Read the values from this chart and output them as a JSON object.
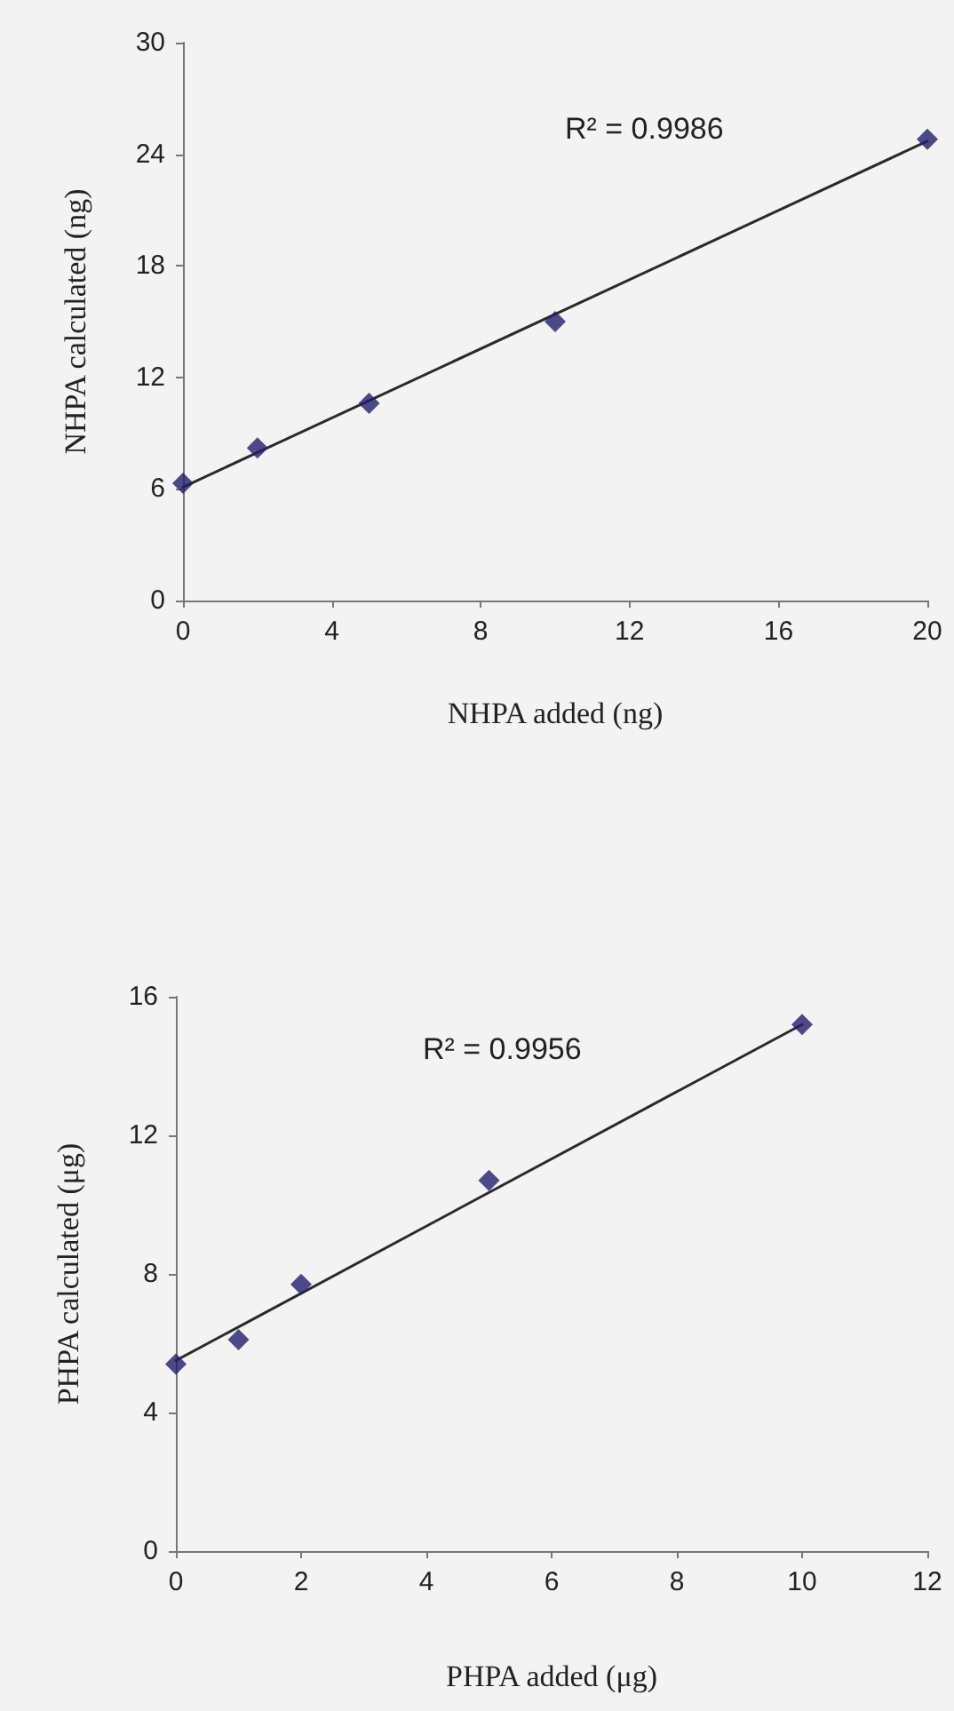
{
  "chart_data": [
    {
      "type": "scatter",
      "xlabel": "NHPA added (ng)",
      "ylabel": "NHPA calculated (ng)",
      "annotations": [
        "R² = 0.9986"
      ],
      "xlim": [
        0,
        20
      ],
      "xticks": [
        0,
        4,
        8,
        12,
        16,
        20
      ],
      "ylim": [
        0,
        30
      ],
      "yticks": [
        0,
        6,
        12,
        18,
        24,
        30
      ],
      "marker": "diamond",
      "grid": false,
      "series": [
        {
          "type": "line",
          "marker": "none",
          "color": "#2a2a2a",
          "x": [
            0,
            20
          ],
          "values": [
            6.1,
            24.7
          ]
        },
        {
          "color": "#1f1f6b",
          "x": [
            0,
            2,
            5,
            10,
            20
          ],
          "values": [
            6.3,
            8.2,
            10.6,
            15.0,
            24.8
          ]
        }
      ]
    },
    {
      "type": "scatter",
      "xlabel": "PHPA added (μg)",
      "ylabel": "PHPA calculated (μg)",
      "annotations": [
        "R² = 0.9956"
      ],
      "xlim": [
        0,
        12
      ],
      "xticks": [
        0,
        2,
        4,
        6,
        8,
        10,
        12
      ],
      "ylim": [
        0,
        16
      ],
      "yticks": [
        0,
        4,
        8,
        12,
        16
      ],
      "marker": "diamond",
      "grid": false,
      "series": [
        {
          "type": "line",
          "marker": "none",
          "color": "#2a2a2a",
          "x": [
            0,
            10
          ],
          "values": [
            5.5,
            15.2
          ]
        },
        {
          "color": "#1f1f6b",
          "x": [
            0,
            1,
            2,
            5,
            10
          ],
          "values": [
            5.4,
            6.1,
            7.7,
            10.7,
            15.2
          ]
        }
      ]
    }
  ]
}
